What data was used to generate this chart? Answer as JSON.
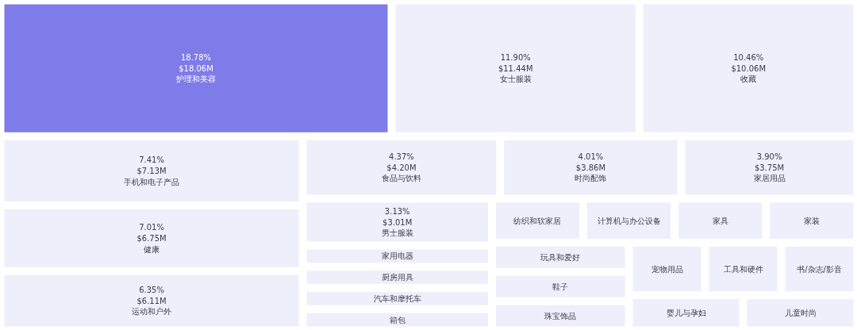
{
  "chart_data": {
    "type": "other",
    "categories": [
      "护理和美容",
      "女士服装",
      "收藏",
      "手机和电子产品",
      "健康",
      "运动和户外",
      "食品与饮料",
      "时尚配饰",
      "家居用品",
      "男士服装",
      "家用电器",
      "厨房用具",
      "汽车和摩托车",
      "箱包",
      "纺织和软家居",
      "计算机与办公设备",
      "家具",
      "家装",
      "玩具和爱好",
      "鞋子",
      "珠宝饰品",
      "宠物用品",
      "工具和硬件",
      "书/杂志/影音",
      "婴儿与孕妇",
      "儿童时尚"
    ],
    "values": [
      18.78,
      11.9,
      10.46,
      7.41,
      7.01,
      6.35,
      4.37,
      4.01,
      3.9,
      3.13,
      null,
      null,
      null,
      null,
      null,
      null,
      null,
      null,
      null,
      null,
      null,
      null,
      null,
      null,
      null,
      null
    ],
    "value_labels": [
      "18.78%\n$18.06M",
      "11.90%\n$11.44M",
      "10.46%\n$10.06M",
      "7.41%\n$7.13M",
      "7.01%\n$6.75M",
      "6.35%\n$6.11M",
      "4.37%\n$4.20M",
      "4.01%\n$3.86M",
      "3.90%\n$3.75M",
      "3.13%\n$3.01M",
      null,
      null,
      null,
      null,
      null,
      null,
      null,
      null,
      null,
      null,
      null,
      null,
      null,
      null,
      null,
      null
    ],
    "colors": [
      "#7f7be8",
      "#efeefb",
      "#efeefb",
      "#efeefb",
      "#efeefb",
      "#efeefb",
      "#efeefb",
      "#efeefb",
      "#efeefb",
      "#efeefb",
      "#efeefb",
      "#efeefb",
      "#efeefb",
      "#efeefb",
      "#efeefb",
      "#efeefb",
      "#efeefb",
      "#efeefb",
      "#efeefb",
      "#efeefb",
      "#efeefb",
      "#efeefb",
      "#efeefb",
      "#efeefb",
      "#efeefb",
      "#efeefb"
    ]
  }
}
